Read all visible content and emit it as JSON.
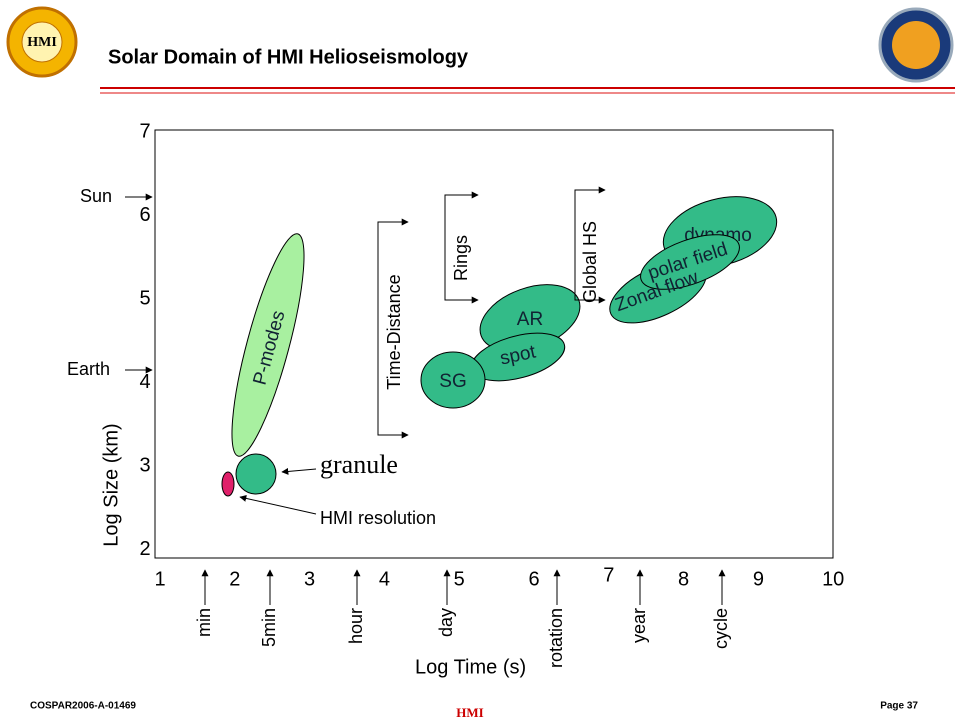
{
  "header": {
    "title": "Solar Domain of HMI Helioseismology"
  },
  "footer": {
    "left": "COSPAR2006-A-01469",
    "center": "HMI",
    "right": "Page 37"
  },
  "axes": {
    "x_label": "Log Time (s)",
    "y_label": "Log Size (km)",
    "x_ticks": [
      1,
      2,
      3,
      4,
      5,
      6,
      7,
      8,
      9,
      10
    ],
    "y_ticks": [
      7,
      6,
      5,
      4,
      3,
      2
    ]
  },
  "time_markers": [
    "min",
    "5min",
    "hour",
    "day",
    "rotation",
    "year",
    "cycle"
  ],
  "size_markers": [
    "Sun",
    "Earth"
  ],
  "regions": [
    "P-modes",
    "granule",
    "SG",
    "spot",
    "AR",
    "Zonal flow",
    "polar field",
    "dynamo"
  ],
  "annotations": [
    "HMI resolution"
  ],
  "techniques": [
    "Time-Distance",
    "Rings",
    "Global HS"
  ]
}
